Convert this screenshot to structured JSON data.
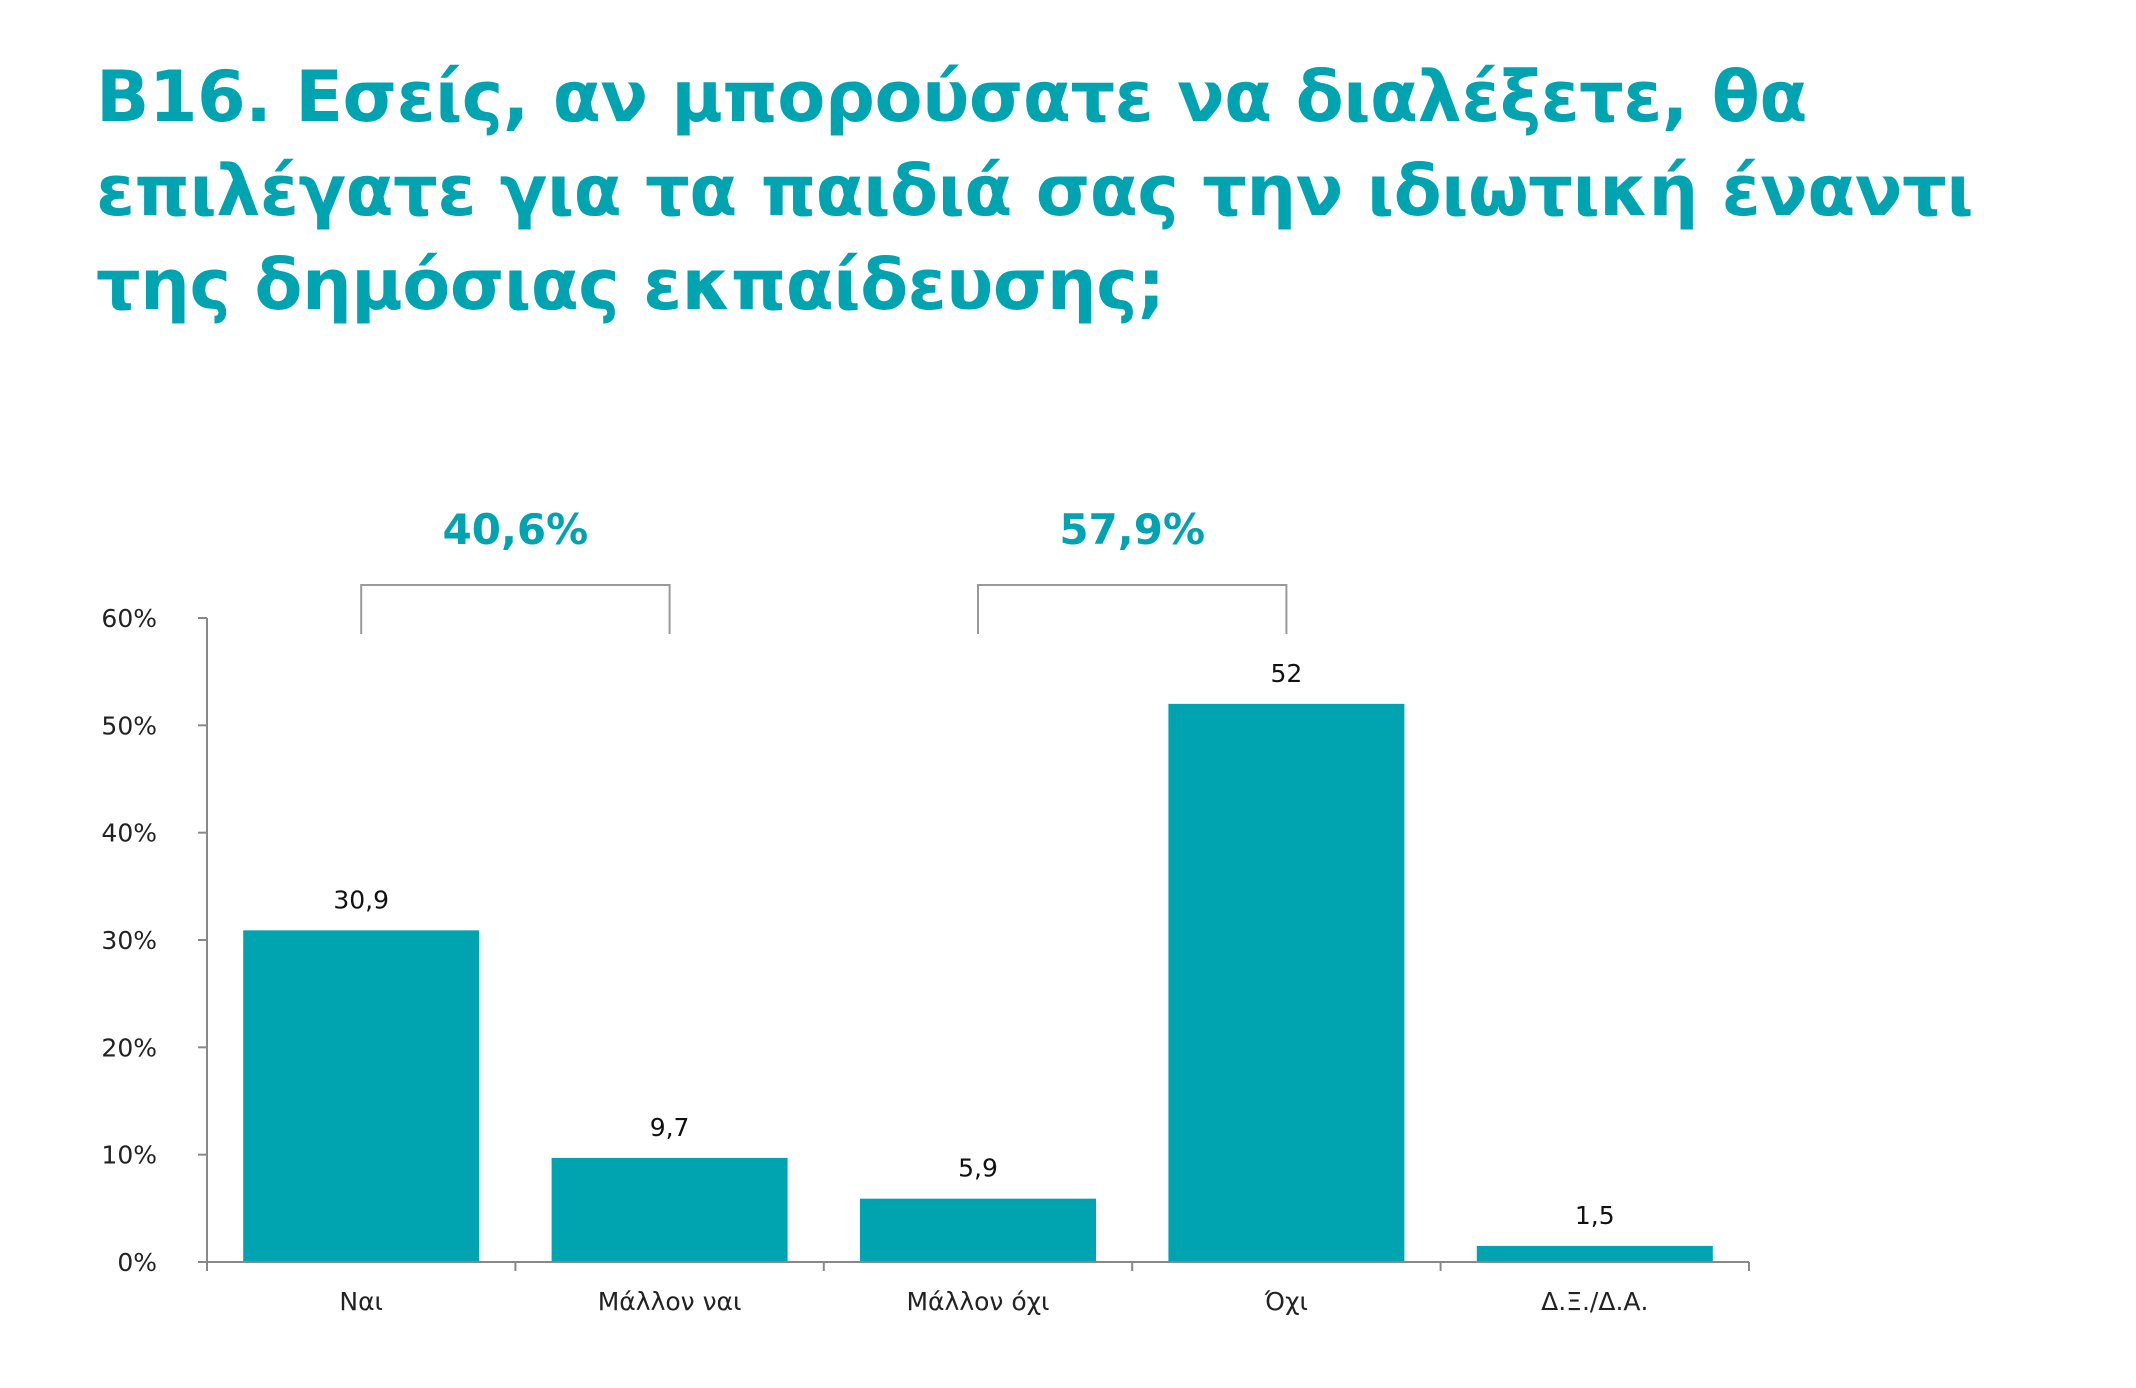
{
  "title": "B16. Εσείς, αν μπορούσατε να διαλέξετε, θα επιλέγατε για τα παιδιά σας την ιδιωτική έναντι της δημόσιας εκπαίδευσης;",
  "colors": {
    "bar": "#00a3b0",
    "title": "#00a3b0",
    "group_label": "#00a3b0",
    "axis": "#888888",
    "bracket": "#999999"
  },
  "chart_data": {
    "type": "bar",
    "categories": [
      "Ναι",
      "Μάλλον ναι",
      "Μάλλον όχι",
      "Όχι",
      "Δ.Ξ./Δ.Α."
    ],
    "values": [
      30.9,
      9.7,
      5.9,
      52,
      1.5
    ],
    "data_labels": [
      "30,9",
      "9,7",
      "5,9",
      "52",
      "1,5"
    ],
    "ylim": [
      0,
      60
    ],
    "yticks": [
      0,
      10,
      20,
      30,
      40,
      50,
      60
    ],
    "ytick_labels": [
      "0%",
      "10%",
      "20%",
      "30%",
      "40%",
      "50%",
      "60%"
    ],
    "xlabel": "",
    "ylabel": "",
    "grid": false,
    "group_brackets": [
      {
        "label": "40,6%",
        "from_category": 0,
        "to_category": 1
      },
      {
        "label": "57,9%",
        "from_category": 2,
        "to_category": 3
      }
    ]
  }
}
